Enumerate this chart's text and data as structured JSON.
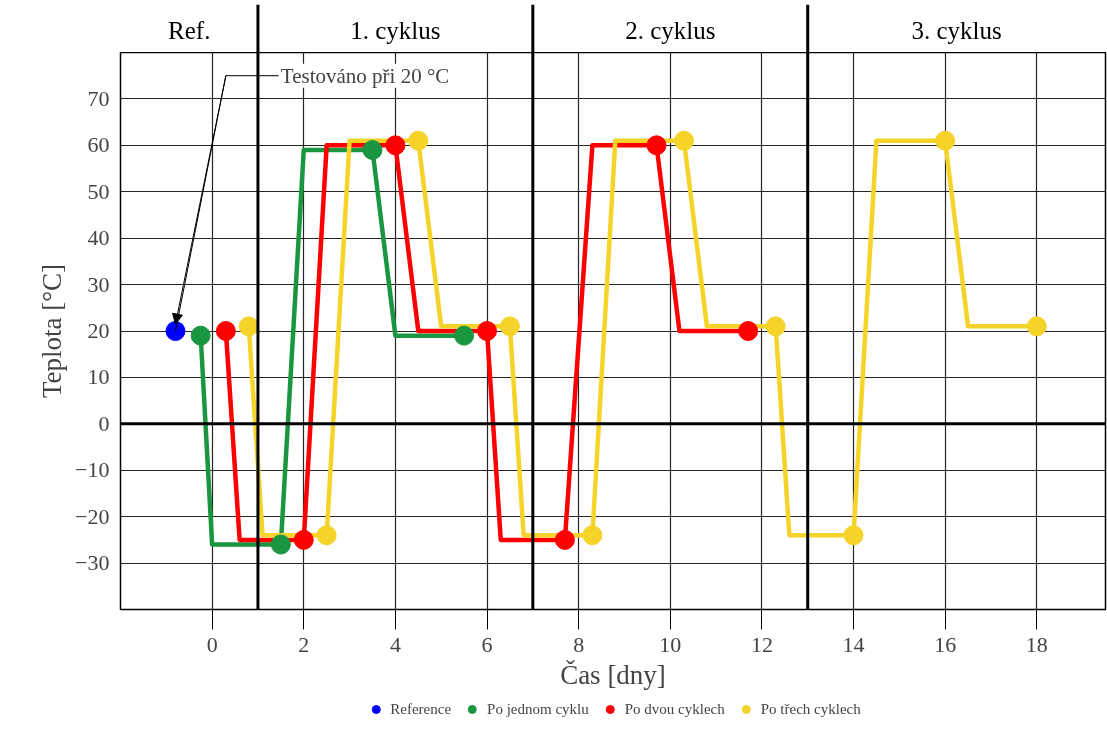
{
  "chart_data": {
    "type": "line",
    "xlabel": "Čas [dny]",
    "ylabel": "Teplota [°C]",
    "xlim": [
      -2,
      19.5
    ],
    "xticks": [
      0,
      2,
      4,
      6,
      8,
      10,
      12,
      14,
      16,
      18
    ],
    "ylim": [
      -40,
      80
    ],
    "yticks": [
      -30,
      -20,
      -10,
      0,
      10,
      20,
      30,
      40,
      50,
      60,
      70
    ],
    "grid": true,
    "legend": "bottom",
    "marker": "circle",
    "line_style": "solid",
    "series": [
      {
        "marker": "none",
        "color": "#1a9641",
        "x": [
          -0.25,
          0,
          1.5,
          2,
          3.5,
          4,
          5.5
        ],
        "values": [
          19,
          -26,
          -26,
          59,
          59,
          19,
          19
        ]
      },
      {
        "marker": "none",
        "color": "#ff0000",
        "x": [
          0.3,
          0.6,
          2,
          2.5,
          4,
          4.5,
          6,
          6.3,
          7.7,
          8.3,
          9.7,
          10.2,
          11.7
        ],
        "values": [
          20,
          -25,
          -25,
          60,
          60,
          20,
          20,
          -25,
          -25,
          60,
          60,
          20,
          20
        ]
      },
      {
        "marker": "none",
        "color": "#f5d328",
        "x": [
          0.8,
          1.1,
          2.5,
          3,
          4.5,
          5,
          6.5,
          6.8,
          8.3,
          8.8,
          10.3,
          10.8,
          12.3,
          12.6,
          14,
          14.5,
          16,
          16.5,
          18
        ],
        "values": [
          21,
          -24,
          -24,
          61,
          61,
          21,
          21,
          -24,
          -24,
          61,
          61,
          21,
          21,
          -24,
          -24,
          61,
          61,
          21,
          21
        ]
      },
      {
        "type": "scatter",
        "name": "Reference",
        "color": "#0000ff",
        "x": [
          -0.8
        ],
        "values": [
          20
        ]
      },
      {
        "type": "scatter",
        "name": "Po jednom cyklu",
        "color": "#1a9641",
        "x": [
          -0.25,
          1.5,
          3.5,
          5.5
        ],
        "values": [
          19,
          -26,
          59,
          19
        ]
      },
      {
        "type": "scatter",
        "name": "Po dvou cyklech",
        "color": "#ff0000",
        "x": [
          0.3,
          2,
          4,
          6,
          7.7,
          9.7,
          11.7
        ],
        "values": [
          20,
          -25,
          60,
          20,
          -25,
          60,
          20
        ]
      },
      {
        "type": "scatter",
        "name": "Po třech cyklech",
        "color": "#f5d328",
        "x": [
          0.8,
          2.5,
          4.5,
          6.5,
          8.3,
          10.3,
          12.3,
          14,
          16,
          18
        ],
        "values": [
          21,
          -24,
          61,
          21,
          -24,
          61,
          21,
          -24,
          61,
          21
        ]
      }
    ],
    "ref_lines": [
      {
        "axis": "y",
        "value": 0,
        "color": "#000000"
      },
      {
        "axis": "x",
        "value": 1,
        "color": "#000000"
      },
      {
        "axis": "x",
        "value": 7,
        "color": "#000000"
      },
      {
        "axis": "x",
        "value": 13,
        "color": "#000000"
      }
    ],
    "annotations": [
      "Ref.",
      "1. cyklus",
      "2. cyklus",
      "3. cyklus",
      {
        "text": "Testováno při 20 °C",
        "x": -0.8,
        "y": 20
      }
    ]
  }
}
